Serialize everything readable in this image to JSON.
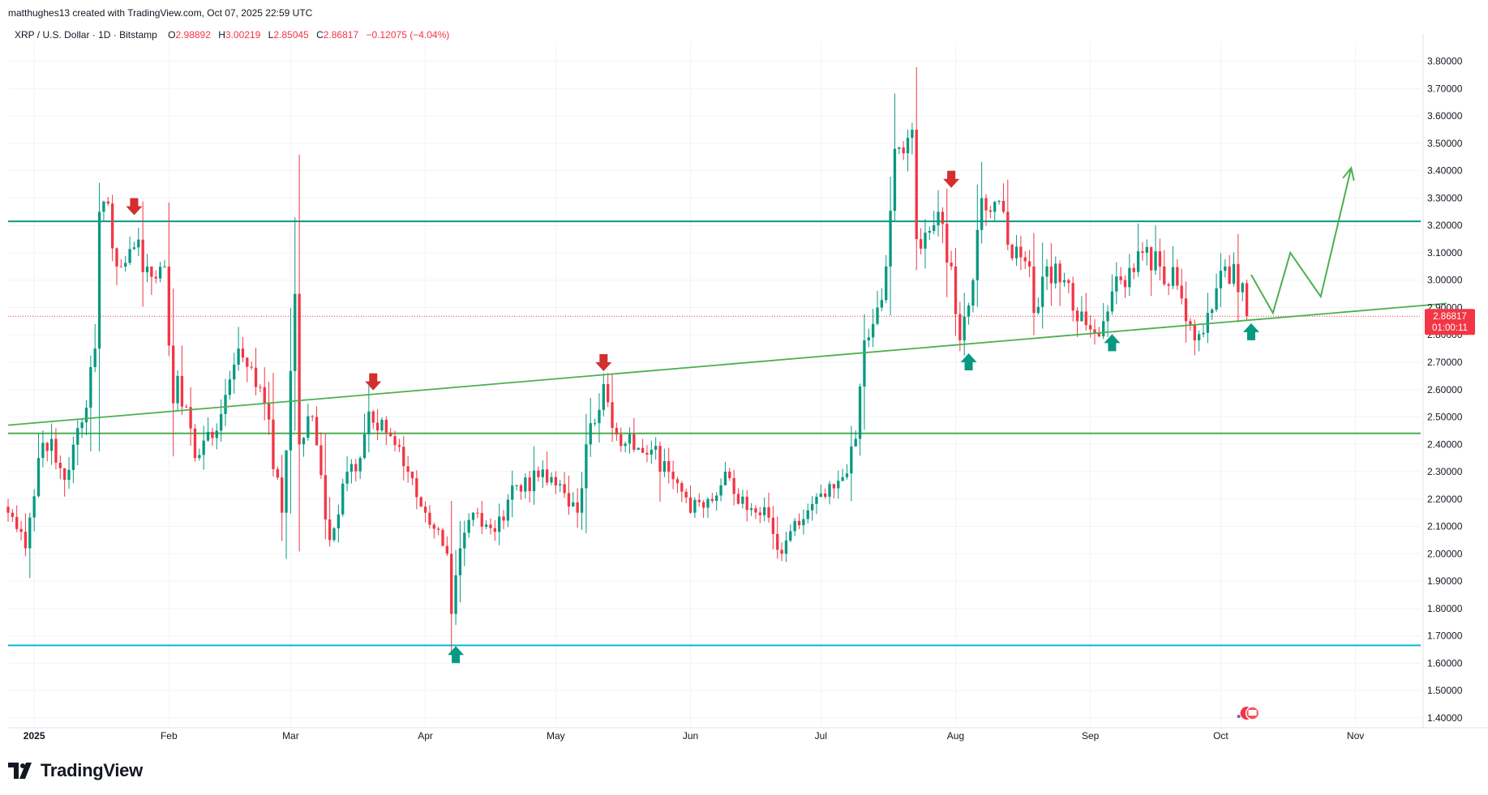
{
  "header": {
    "caption": "matthughes13 created with TradingView.com, Oct 07, 2025 22:59 UTC",
    "symbol": "XRP / U.S. Dollar · 1D · Bitstamp",
    "open_label": "O",
    "open_value": "2.98892",
    "high_label": "H",
    "high_value": "3.00219",
    "low_label": "L",
    "low_value": "2.85045",
    "close_label": "C",
    "close_value": "2.86817",
    "change_value": "−0.12075 (−4.04%)"
  },
  "price_tag": {
    "price": "2.86817",
    "countdown": "01:00:11"
  },
  "footer": {
    "brand": "TradingView"
  },
  "colors": {
    "up": "#089981",
    "down": "#f23645",
    "trend": "#4caf50",
    "resistance": "#089981",
    "support_low": "#00bcd4",
    "axis_text": "#131722"
  },
  "chart_data": {
    "type": "candlestick",
    "symbol": "XRP / U.S. Dollar",
    "interval": "1D",
    "exchange": "Bitstamp",
    "ylim": [
      1.37,
      3.87
    ],
    "y_ticks": [
      "1.40000",
      "1.50000",
      "1.60000",
      "1.70000",
      "1.80000",
      "1.90000",
      "2.00000",
      "2.10000",
      "2.20000",
      "2.30000",
      "2.40000",
      "2.50000",
      "2.60000",
      "2.70000",
      "2.80000",
      "2.90000",
      "3.00000",
      "3.10000",
      "3.20000",
      "3.30000",
      "3.40000",
      "3.50000",
      "3.60000",
      "3.70000",
      "3.80000"
    ],
    "x_start": "2024-12-26",
    "x_end": "2025-11-16",
    "x_ticks": [
      {
        "date": "2025-01-01",
        "label": "2025",
        "bold": true
      },
      {
        "date": "2025-02-01",
        "label": "Feb"
      },
      {
        "date": "2025-03-01",
        "label": "Mar"
      },
      {
        "date": "2025-04-01",
        "label": "Apr"
      },
      {
        "date": "2025-05-01",
        "label": "May"
      },
      {
        "date": "2025-06-01",
        "label": "Jun"
      },
      {
        "date": "2025-07-01",
        "label": "Jul"
      },
      {
        "date": "2025-08-01",
        "label": "Aug"
      },
      {
        "date": "2025-09-01",
        "label": "Sep"
      },
      {
        "date": "2025-10-01",
        "label": "Oct"
      },
      {
        "date": "2025-11-01",
        "label": "Nov"
      }
    ],
    "candles_start": "2024-12-26",
    "close_anchors": [
      {
        "date": "2024-12-26",
        "close": 2.15
      },
      {
        "date": "2024-12-30",
        "close": 2.02
      },
      {
        "date": "2025-01-02",
        "close": 2.35
      },
      {
        "date": "2025-01-05",
        "close": 2.42
      },
      {
        "date": "2025-01-08",
        "close": 2.27
      },
      {
        "date": "2025-01-12",
        "close": 2.48
      },
      {
        "date": "2025-01-15",
        "close": 2.75
      },
      {
        "date": "2025-01-16",
        "close": 3.25
      },
      {
        "date": "2025-01-18",
        "close": 3.28
      },
      {
        "date": "2025-01-20",
        "close": 3.05
      },
      {
        "date": "2025-01-24",
        "close": 3.12
      },
      {
        "date": "2025-01-27",
        "close": 3.05
      },
      {
        "date": "2025-01-31",
        "close": 3.05
      },
      {
        "date": "2025-02-02",
        "close": 2.55
      },
      {
        "date": "2025-02-03",
        "close": 2.65
      },
      {
        "date": "2025-02-07",
        "close": 2.35
      },
      {
        "date": "2025-02-12",
        "close": 2.45
      },
      {
        "date": "2025-02-17",
        "close": 2.75
      },
      {
        "date": "2025-02-20",
        "close": 2.68
      },
      {
        "date": "2025-02-23",
        "close": 2.55
      },
      {
        "date": "2025-02-27",
        "close": 2.15
      },
      {
        "date": "2025-03-02",
        "close": 2.95
      },
      {
        "date": "2025-03-03",
        "close": 2.4
      },
      {
        "date": "2025-03-06",
        "close": 2.5
      },
      {
        "date": "2025-03-10",
        "close": 2.05
      },
      {
        "date": "2025-03-14",
        "close": 2.3
      },
      {
        "date": "2025-03-17",
        "close": 2.35
      },
      {
        "date": "2025-03-19",
        "close": 2.52
      },
      {
        "date": "2025-03-24",
        "close": 2.43
      },
      {
        "date": "2025-03-27",
        "close": 2.32
      },
      {
        "date": "2025-04-01",
        "close": 2.15
      },
      {
        "date": "2025-04-06",
        "close": 2.0
      },
      {
        "date": "2025-04-07",
        "close": 1.78
      },
      {
        "date": "2025-04-09",
        "close": 2.02
      },
      {
        "date": "2025-04-12",
        "close": 2.15
      },
      {
        "date": "2025-04-17",
        "close": 2.08
      },
      {
        "date": "2025-04-22",
        "close": 2.25
      },
      {
        "date": "2025-04-27",
        "close": 2.28
      },
      {
        "date": "2025-05-01",
        "close": 2.25
      },
      {
        "date": "2025-05-06",
        "close": 2.15
      },
      {
        "date": "2025-05-08",
        "close": 2.4
      },
      {
        "date": "2025-05-12",
        "close": 2.62
      },
      {
        "date": "2025-05-14",
        "close": 2.46
      },
      {
        "date": "2025-05-19",
        "close": 2.38
      },
      {
        "date": "2025-05-23",
        "close": 2.38
      },
      {
        "date": "2025-05-27",
        "close": 2.3
      },
      {
        "date": "2025-06-01",
        "close": 2.15
      },
      {
        "date": "2025-06-05",
        "close": 2.2
      },
      {
        "date": "2025-06-09",
        "close": 2.3
      },
      {
        "date": "2025-06-14",
        "close": 2.16
      },
      {
        "date": "2025-06-18",
        "close": 2.17
      },
      {
        "date": "2025-06-22",
        "close": 2.0
      },
      {
        "date": "2025-06-25",
        "close": 2.12
      },
      {
        "date": "2025-07-01",
        "close": 2.22
      },
      {
        "date": "2025-07-06",
        "close": 2.28
      },
      {
        "date": "2025-07-09",
        "close": 2.42
      },
      {
        "date": "2025-07-11",
        "close": 2.78
      },
      {
        "date": "2025-07-14",
        "close": 2.9
      },
      {
        "date": "2025-07-16",
        "close": 3.05
      },
      {
        "date": "2025-07-18",
        "close": 3.48
      },
      {
        "date": "2025-07-21",
        "close": 3.52
      },
      {
        "date": "2025-07-22",
        "close": 3.55
      },
      {
        "date": "2025-07-23",
        "close": 3.15
      },
      {
        "date": "2025-07-26",
        "close": 3.18
      },
      {
        "date": "2025-07-28",
        "close": 3.25
      },
      {
        "date": "2025-07-31",
        "close": 3.05
      },
      {
        "date": "2025-08-02",
        "close": 2.78
      },
      {
        "date": "2025-08-05",
        "close": 3.0
      },
      {
        "date": "2025-08-07",
        "close": 3.3
      },
      {
        "date": "2025-08-09",
        "close": 3.25
      },
      {
        "date": "2025-08-12",
        "close": 3.25
      },
      {
        "date": "2025-08-14",
        "close": 3.08
      },
      {
        "date": "2025-08-18",
        "close": 3.05
      },
      {
        "date": "2025-08-19",
        "close": 2.88
      },
      {
        "date": "2025-08-22",
        "close": 3.05
      },
      {
        "date": "2025-08-26",
        "close": 3.0
      },
      {
        "date": "2025-08-29",
        "close": 2.85
      },
      {
        "date": "2025-09-01",
        "close": 2.82
      },
      {
        "date": "2025-09-04",
        "close": 2.85
      },
      {
        "date": "2025-09-08",
        "close": 3.0
      },
      {
        "date": "2025-09-13",
        "close": 3.1
      },
      {
        "date": "2025-09-17",
        "close": 3.05
      },
      {
        "date": "2025-09-21",
        "close": 2.98
      },
      {
        "date": "2025-09-23",
        "close": 2.85
      },
      {
        "date": "2025-09-25",
        "close": 2.78
      },
      {
        "date": "2025-09-28",
        "close": 2.88
      },
      {
        "date": "2025-10-02",
        "close": 3.05
      },
      {
        "date": "2025-10-06",
        "close": 2.98892
      },
      {
        "date": "2025-10-07",
        "close": 2.86817
      }
    ],
    "last_candle": {
      "date": "2025-10-07",
      "open": 2.98892,
      "high": 3.00219,
      "low": 2.85045,
      "close": 2.86817
    },
    "horizontal_levels": [
      {
        "name": "resistance",
        "price": 3.215,
        "color": "#089981"
      },
      {
        "name": "support",
        "price": 2.44,
        "color": "#4caf50"
      },
      {
        "name": "april-low",
        "price": 1.665,
        "color": "#00bcd4"
      }
    ],
    "trend_line": {
      "p1": {
        "date": "2024-12-26",
        "price": 2.47
      },
      "p2": {
        "date": "2025-11-22",
        "price": 2.915
      },
      "color": "#4caf50"
    },
    "current_price_line": 2.86817,
    "markers": [
      {
        "type": "sell-arrow",
        "date": "2025-01-24",
        "price": 3.27
      },
      {
        "type": "sell-arrow",
        "date": "2025-03-20",
        "price": 2.63
      },
      {
        "type": "sell-arrow",
        "date": "2025-05-12",
        "price": 2.7
      },
      {
        "type": "sell-arrow",
        "date": "2025-07-31",
        "price": 3.37
      },
      {
        "type": "buy-arrow",
        "date": "2025-04-08",
        "price": 1.63
      },
      {
        "type": "buy-arrow",
        "date": "2025-08-04",
        "price": 2.7
      },
      {
        "type": "buy-arrow",
        "date": "2025-09-06",
        "price": 2.77
      },
      {
        "type": "buy-arrow",
        "date": "2025-10-08",
        "price": 2.81
      }
    ],
    "projection": {
      "points": [
        {
          "date": "2025-10-08",
          "price": 3.02
        },
        {
          "date": "2025-10-13",
          "price": 2.88
        },
        {
          "date": "2025-10-17",
          "price": 3.1
        },
        {
          "date": "2025-10-24",
          "price": 2.94
        },
        {
          "date": "2025-10-31",
          "price": 3.41
        }
      ],
      "color": "#4caf50"
    }
  }
}
